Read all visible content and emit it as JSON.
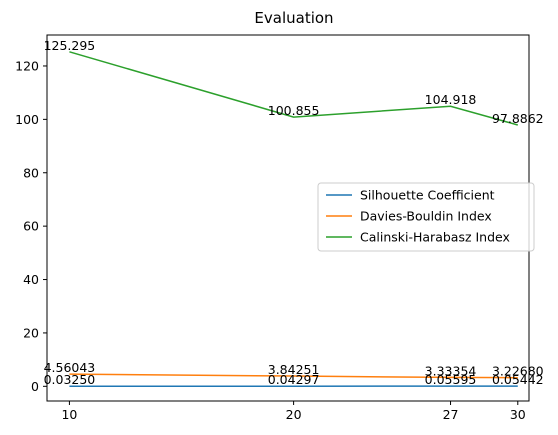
{
  "chart_data": {
    "type": "line",
    "title": "Evaluation",
    "xlabel": "",
    "ylabel": "",
    "x": [
      10,
      20,
      27,
      30
    ],
    "xticks": [
      10,
      20,
      27,
      30
    ],
    "yticks": [
      0,
      20,
      40,
      60,
      80,
      100,
      120
    ],
    "xlim": [
      9,
      30.5
    ],
    "ylim": [
      -5.5,
      131.6
    ],
    "grid": false,
    "legend_position": "center-right",
    "series": [
      {
        "name": "Silhouette Coefficient",
        "color": "#1f77b4",
        "values": [
          0.0325,
          0.04297,
          0.05595,
          0.05442
        ],
        "labels": [
          "0.03250",
          "0.04297",
          "0.05595",
          "0.05442"
        ]
      },
      {
        "name": "Davies-Bouldin Index",
        "color": "#ff7f0e",
        "values": [
          4.56043,
          3.84251,
          3.33354,
          3.2268
        ],
        "labels": [
          "4.56043",
          "3.84251",
          "3.33354",
          "3.22680"
        ]
      },
      {
        "name": "Calinski-Harabasz Index",
        "color": "#2ca02c",
        "values": [
          125.295,
          100.855,
          104.918,
          97.8862
        ],
        "labels": [
          "125.295",
          "100.855",
          "104.918",
          "97.8862"
        ]
      }
    ]
  }
}
